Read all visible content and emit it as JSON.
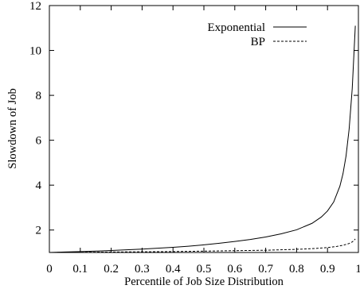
{
  "chart_data": {
    "type": "line",
    "title": "",
    "xlabel": "Percentile of Job Size Distribution",
    "ylabel": "Slowdown of Job",
    "xlim": [
      0,
      1
    ],
    "ylim": [
      1,
      12
    ],
    "xticks": [
      0,
      0.1,
      0.2,
      0.3,
      0.4,
      0.5,
      0.6,
      0.7,
      0.8,
      0.9,
      1
    ],
    "xtick_labels": [
      "0",
      "0.1",
      "0.2",
      "0.3",
      "0.4",
      "0.5",
      "0.6",
      "0.7",
      "0.8",
      "0.9",
      "1"
    ],
    "yticks": [
      2,
      4,
      6,
      8,
      10,
      12
    ],
    "ytick_labels": [
      "2",
      "4",
      "6",
      "8",
      "10",
      "12"
    ],
    "grid": false,
    "legend_position": "top-right",
    "series": [
      {
        "name": "Exponential",
        "style": "solid",
        "x": [
          0.0,
          0.05,
          0.1,
          0.15,
          0.2,
          0.25,
          0.3,
          0.35,
          0.4,
          0.45,
          0.5,
          0.55,
          0.6,
          0.65,
          0.7,
          0.75,
          0.8,
          0.85,
          0.88,
          0.9,
          0.92,
          0.94,
          0.95,
          0.96,
          0.97,
          0.98,
          0.99
        ],
        "y": [
          1.0,
          1.02,
          1.04,
          1.06,
          1.09,
          1.12,
          1.15,
          1.19,
          1.23,
          1.28,
          1.34,
          1.41,
          1.49,
          1.58,
          1.69,
          1.83,
          2.01,
          2.3,
          2.58,
          2.85,
          3.25,
          3.95,
          4.5,
          5.3,
          6.5,
          8.3,
          11.1
        ]
      },
      {
        "name": "BP",
        "style": "dashed",
        "x": [
          0.0,
          0.1,
          0.2,
          0.3,
          0.4,
          0.5,
          0.6,
          0.7,
          0.8,
          0.85,
          0.9,
          0.93,
          0.95,
          0.97,
          0.98,
          0.99
        ],
        "y": [
          1.0,
          1.01,
          1.02,
          1.03,
          1.04,
          1.06,
          1.08,
          1.1,
          1.14,
          1.17,
          1.22,
          1.27,
          1.32,
          1.4,
          1.47,
          1.6
        ]
      }
    ]
  }
}
